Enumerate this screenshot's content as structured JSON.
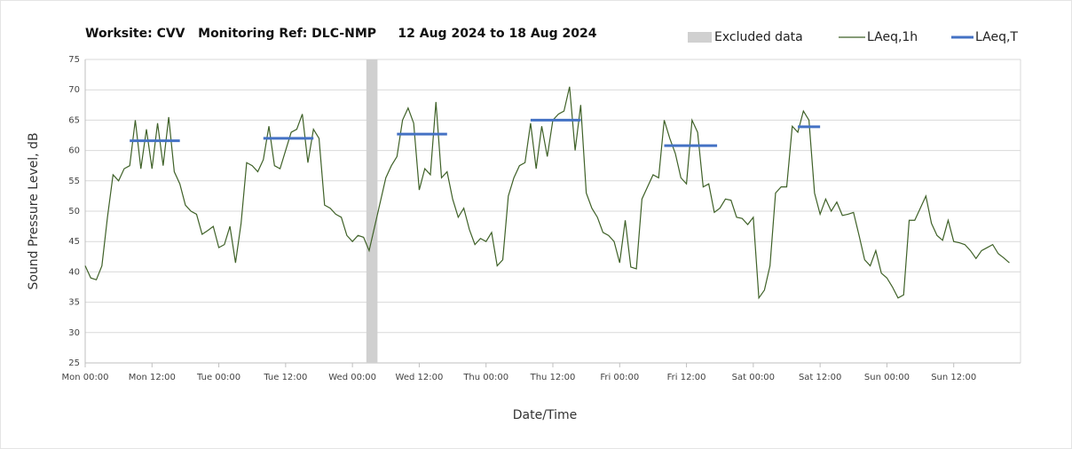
{
  "chart_data": {
    "type": "line",
    "title": "Worksite: CVV   Monitoring Ref: DLC-NMP     12 Aug 2024 to 18 Aug 2024",
    "xlabel": "Date/Time",
    "ylabel": "Sound Pressure Level, dB",
    "xlim": [
      0,
      168
    ],
    "ylim": [
      25,
      75
    ],
    "grid": true,
    "yticks": [
      25,
      30,
      35,
      40,
      45,
      50,
      55,
      60,
      65,
      70,
      75
    ],
    "xticks": [
      {
        "value": 0,
        "label": "Mon 00:00"
      },
      {
        "value": 12,
        "label": "Mon 12:00"
      },
      {
        "value": 24,
        "label": "Tue 00:00"
      },
      {
        "value": 36,
        "label": "Tue 12:00"
      },
      {
        "value": 48,
        "label": "Wed 00:00"
      },
      {
        "value": 60,
        "label": "Wed 12:00"
      },
      {
        "value": 72,
        "label": "Thu 00:00"
      },
      {
        "value": 84,
        "label": "Thu 12:00"
      },
      {
        "value": 96,
        "label": "Fri 00:00"
      },
      {
        "value": 108,
        "label": "Fri 12:00"
      },
      {
        "value": 120,
        "label": "Sat 00:00"
      },
      {
        "value": 132,
        "label": "Sat 12:00"
      },
      {
        "value": 144,
        "label": "Sun 00:00"
      },
      {
        "value": 156,
        "label": "Sun 12:00"
      }
    ],
    "x": [
      0,
      1,
      2,
      3,
      4,
      5,
      6,
      7,
      8,
      9,
      10,
      11,
      12,
      13,
      14,
      15,
      16,
      17,
      18,
      19,
      20,
      21,
      22,
      23,
      24,
      25,
      26,
      27,
      28,
      29,
      30,
      31,
      32,
      33,
      34,
      35,
      36,
      37,
      38,
      39,
      40,
      41,
      42,
      43,
      44,
      45,
      46,
      47,
      48,
      49,
      50,
      51,
      52,
      53,
      54,
      55,
      56,
      57,
      58,
      59,
      60,
      61,
      62,
      63,
      64,
      65,
      66,
      67,
      68,
      69,
      70,
      71,
      72,
      73,
      74,
      75,
      76,
      77,
      78,
      79,
      80,
      81,
      82,
      83,
      84,
      85,
      86,
      87,
      88,
      89,
      90,
      91,
      92,
      93,
      94,
      95,
      96,
      97,
      98,
      99,
      100,
      101,
      102,
      103,
      104,
      105,
      106,
      107,
      108,
      109,
      110,
      111,
      112,
      113,
      114,
      115,
      116,
      117,
      118,
      119,
      120,
      121,
      122,
      123,
      124,
      125,
      126,
      127,
      128,
      129,
      130,
      131,
      132,
      133,
      134,
      135,
      136,
      137,
      138,
      139,
      140,
      141,
      142,
      143,
      144,
      145,
      146,
      147,
      148,
      149,
      150,
      151,
      152,
      153,
      154,
      155,
      156,
      157,
      158,
      159,
      160,
      161,
      162,
      163,
      164,
      165,
      166
    ],
    "series": [
      {
        "name": "LAeq,1h",
        "color": "#3f6128",
        "values": [
          41,
          39,
          38.7,
          41,
          49,
          56,
          55,
          57,
          57.5,
          65,
          57,
          63.5,
          57,
          64.5,
          57.5,
          65.5,
          56.5,
          54.5,
          51,
          50,
          49.5,
          46.2,
          46.8,
          47.5,
          44,
          44.5,
          47.5,
          41.5,
          48,
          58,
          57.5,
          56.5,
          58.5,
          64,
          57.5,
          57,
          60,
          63,
          63.5,
          66,
          58,
          63.5,
          62,
          51,
          50.5,
          49.5,
          49,
          46,
          45,
          46,
          45.7,
          43.5,
          47.5,
          51.5,
          55.5,
          57.5,
          59,
          65,
          67,
          64.5,
          53.5,
          57,
          56,
          68,
          55.5,
          56.5,
          52,
          49,
          50.5,
          47,
          44.5,
          45.5,
          45,
          46.5,
          41,
          42,
          52.5,
          55.5,
          57.5,
          58,
          64.5,
          57,
          64,
          59,
          65,
          66,
          66.5,
          70.5,
          60,
          67.5,
          53,
          50.5,
          49,
          46.5,
          46,
          45,
          41.5,
          48.5,
          40.8,
          40.5,
          52,
          54,
          56,
          55.5,
          65,
          62,
          59.5,
          55.5,
          54.5,
          65,
          63,
          54,
          54.5,
          49.8,
          50.5,
          52,
          51.8,
          49,
          48.8,
          47.8,
          49,
          35.7,
          37,
          41,
          53,
          54,
          54,
          64,
          63,
          66.5,
          65,
          53,
          49.5,
          52,
          50,
          51.5,
          49.3,
          49.5,
          49.8,
          46,
          42,
          41,
          43.5,
          39.8,
          39,
          37.5,
          35.7,
          36.2,
          48.5,
          48.5,
          50.5,
          52.5,
          48,
          46,
          45.2,
          48.5,
          45,
          44.8,
          44.5,
          43.5,
          42.2,
          43.5,
          44,
          44.5,
          43,
          42.3,
          41.5
        ]
      }
    ],
    "leq": {
      "name": "LAeq,T",
      "color": "#4472c4",
      "segments": [
        {
          "x": [
            8,
            17
          ],
          "value": 61.6
        },
        {
          "x": [
            32,
            41
          ],
          "value": 62
        },
        {
          "x": [
            56,
            65
          ],
          "value": 62.7
        },
        {
          "x": [
            80,
            89
          ],
          "value": 65
        },
        {
          "x": [
            104,
            113.5
          ],
          "value": 60.8
        },
        {
          "x": [
            128,
            132
          ],
          "value": 63.9
        }
      ]
    },
    "excluded": {
      "name": "Excluded data",
      "color": "#d0d0d0",
      "x": [
        50.5,
        52.5
      ]
    }
  }
}
